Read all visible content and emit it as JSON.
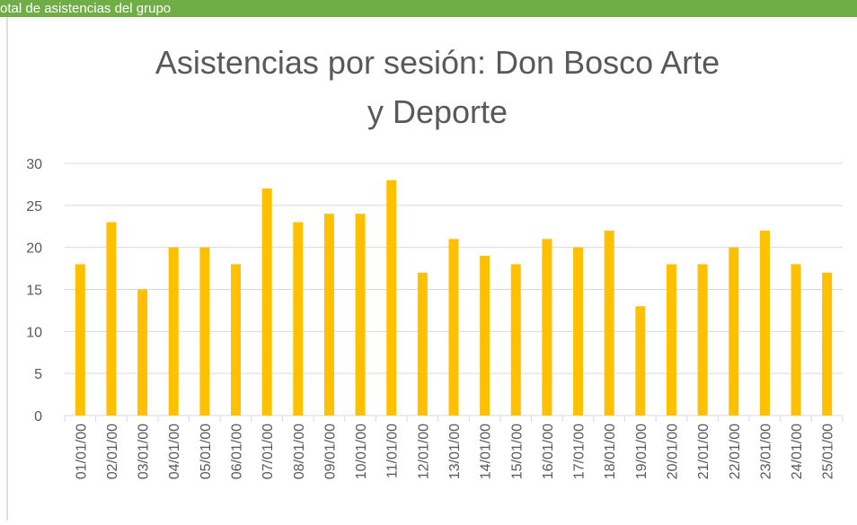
{
  "header": {
    "text": "otal de asistencias del grupo"
  },
  "chart_data": {
    "type": "bar",
    "title": [
      "Asistencias por sesión: Don Bosco Arte",
      "y Deporte"
    ],
    "categories": [
      "01/01/00",
      "02/01/00",
      "03/01/00",
      "04/01/00",
      "05/01/00",
      "06/01/00",
      "07/01/00",
      "08/01/00",
      "09/01/00",
      "10/01/00",
      "11/01/00",
      "12/01/00",
      "13/01/00",
      "14/01/00",
      "15/01/00",
      "16/01/00",
      "17/01/00",
      "18/01/00",
      "19/01/00",
      "20/01/00",
      "21/01/00",
      "22/01/00",
      "23/01/00",
      "24/01/00",
      "25/01/00"
    ],
    "values": [
      18,
      23,
      15,
      20,
      20,
      18,
      27,
      23,
      24,
      24,
      28,
      17,
      21,
      19,
      18,
      21,
      20,
      22,
      13,
      18,
      18,
      20,
      22,
      18,
      17
    ],
    "color": "#ffc000",
    "ylim": [
      0,
      30
    ],
    "yticks": [
      0,
      5,
      10,
      15,
      20,
      25,
      30
    ],
    "grid": true
  }
}
